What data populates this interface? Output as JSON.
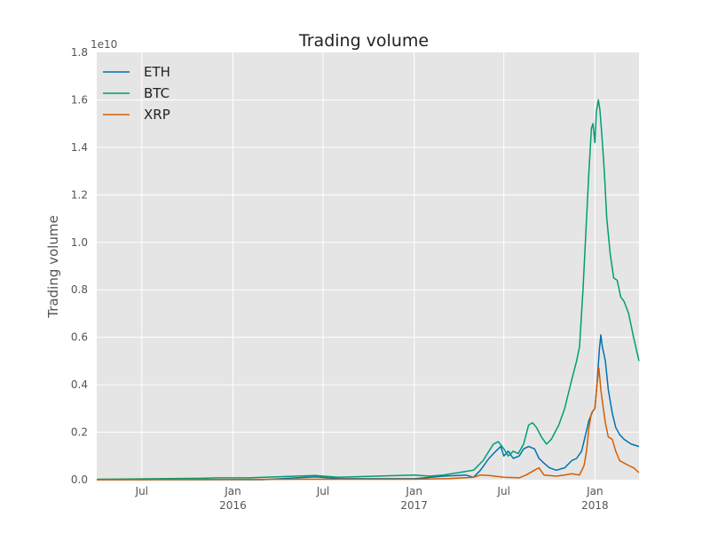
{
  "chart_data": {
    "type": "line",
    "title": "Trading volume",
    "ylabel": "Trading volume",
    "xlabel": "",
    "y_offset_label": "1e10",
    "y_scale": 10000000000,
    "xlim": [
      "2015-04-01",
      "2018-03-31"
    ],
    "ylim": [
      0,
      1.8
    ],
    "grid": true,
    "legend_position": "top-left",
    "background": "#e5e5e5",
    "yticks": [
      {
        "value": 0.0,
        "label": "0.0"
      },
      {
        "value": 0.2,
        "label": "0.2"
      },
      {
        "value": 0.4,
        "label": "0.4"
      },
      {
        "value": 0.6,
        "label": "0.6"
      },
      {
        "value": 0.8,
        "label": "0.8"
      },
      {
        "value": 1.0,
        "label": "1.0"
      },
      {
        "value": 1.2,
        "label": "1.2"
      },
      {
        "value": 1.4,
        "label": "1.4"
      },
      {
        "value": 1.6,
        "label": "1.6"
      },
      {
        "value": 1.8,
        "label": "1.8"
      }
    ],
    "xticks": [
      {
        "date": "2015-07-01",
        "label": "Jul",
        "year": "",
        "major": false
      },
      {
        "date": "2016-01-01",
        "label": "Jan",
        "year": "2016",
        "major": true
      },
      {
        "date": "2016-07-01",
        "label": "Jul",
        "year": "",
        "major": false
      },
      {
        "date": "2017-01-01",
        "label": "Jan",
        "year": "2017",
        "major": true
      },
      {
        "date": "2017-07-01",
        "label": "Jul",
        "year": "",
        "major": false
      },
      {
        "date": "2018-01-01",
        "label": "Jan",
        "year": "2018",
        "major": true
      }
    ],
    "series": [
      {
        "name": "ETH",
        "color": "#0072b2",
        "points": [
          [
            "2015-04-01",
            0.0
          ],
          [
            "2016-03-01",
            0.0
          ],
          [
            "2016-06-15",
            0.012
          ],
          [
            "2016-08-01",
            0.005
          ],
          [
            "2017-01-01",
            0.004
          ],
          [
            "2017-03-01",
            0.015
          ],
          [
            "2017-04-15",
            0.02
          ],
          [
            "2017-05-01",
            0.01
          ],
          [
            "2017-05-15",
            0.04
          ],
          [
            "2017-06-01",
            0.09
          ],
          [
            "2017-06-15",
            0.12
          ],
          [
            "2017-06-25",
            0.14
          ],
          [
            "2017-07-01",
            0.1
          ],
          [
            "2017-07-10",
            0.12
          ],
          [
            "2017-07-20",
            0.09
          ],
          [
            "2017-08-01",
            0.1
          ],
          [
            "2017-08-10",
            0.13
          ],
          [
            "2017-08-20",
            0.14
          ],
          [
            "2017-09-01",
            0.13
          ],
          [
            "2017-09-10",
            0.09
          ],
          [
            "2017-09-20",
            0.07
          ],
          [
            "2017-10-01",
            0.05
          ],
          [
            "2017-10-15",
            0.04
          ],
          [
            "2017-11-01",
            0.05
          ],
          [
            "2017-11-15",
            0.08
          ],
          [
            "2017-11-25",
            0.09
          ],
          [
            "2017-12-05",
            0.12
          ],
          [
            "2017-12-12",
            0.18
          ],
          [
            "2017-12-20",
            0.25
          ],
          [
            "2017-12-28",
            0.29
          ],
          [
            "2018-01-01",
            0.3
          ],
          [
            "2018-01-05",
            0.4
          ],
          [
            "2018-01-10",
            0.55
          ],
          [
            "2018-01-13",
            0.61
          ],
          [
            "2018-01-16",
            0.56
          ],
          [
            "2018-01-22",
            0.5
          ],
          [
            "2018-01-28",
            0.38
          ],
          [
            "2018-02-05",
            0.28
          ],
          [
            "2018-02-12",
            0.22
          ],
          [
            "2018-02-20",
            0.19
          ],
          [
            "2018-03-01",
            0.17
          ],
          [
            "2018-03-15",
            0.15
          ],
          [
            "2018-03-31",
            0.14
          ]
        ]
      },
      {
        "name": "BTC",
        "color": "#009e73",
        "points": [
          [
            "2015-04-01",
            0.002
          ],
          [
            "2015-11-01",
            0.006
          ],
          [
            "2015-12-01",
            0.008
          ],
          [
            "2016-02-01",
            0.008
          ],
          [
            "2016-06-15",
            0.018
          ],
          [
            "2016-08-01",
            0.01
          ],
          [
            "2017-01-01",
            0.02
          ],
          [
            "2017-02-01",
            0.015
          ],
          [
            "2017-03-01",
            0.02
          ],
          [
            "2017-04-01",
            0.03
          ],
          [
            "2017-05-01",
            0.04
          ],
          [
            "2017-05-20",
            0.08
          ],
          [
            "2017-06-01",
            0.12
          ],
          [
            "2017-06-10",
            0.15
          ],
          [
            "2017-06-20",
            0.16
          ],
          [
            "2017-07-01",
            0.13
          ],
          [
            "2017-07-10",
            0.1
          ],
          [
            "2017-07-20",
            0.12
          ],
          [
            "2017-07-30",
            0.11
          ],
          [
            "2017-08-10",
            0.15
          ],
          [
            "2017-08-20",
            0.23
          ],
          [
            "2017-08-28",
            0.24
          ],
          [
            "2017-09-05",
            0.22
          ],
          [
            "2017-09-15",
            0.18
          ],
          [
            "2017-09-25",
            0.15
          ],
          [
            "2017-10-05",
            0.17
          ],
          [
            "2017-10-20",
            0.23
          ],
          [
            "2017-11-01",
            0.3
          ],
          [
            "2017-11-15",
            0.42
          ],
          [
            "2017-11-25",
            0.5
          ],
          [
            "2017-12-01",
            0.56
          ],
          [
            "2017-12-08",
            0.8
          ],
          [
            "2017-12-15",
            1.1
          ],
          [
            "2017-12-20",
            1.3
          ],
          [
            "2017-12-25",
            1.48
          ],
          [
            "2017-12-28",
            1.5
          ],
          [
            "2018-01-01",
            1.42
          ],
          [
            "2018-01-04",
            1.55
          ],
          [
            "2018-01-08",
            1.6
          ],
          [
            "2018-01-11",
            1.56
          ],
          [
            "2018-01-15",
            1.45
          ],
          [
            "2018-01-20",
            1.3
          ],
          [
            "2018-01-25",
            1.1
          ],
          [
            "2018-02-01",
            0.95
          ],
          [
            "2018-02-08",
            0.85
          ],
          [
            "2018-02-15",
            0.84
          ],
          [
            "2018-02-22",
            0.77
          ],
          [
            "2018-03-01",
            0.75
          ],
          [
            "2018-03-10",
            0.7
          ],
          [
            "2018-03-20",
            0.6
          ],
          [
            "2018-03-31",
            0.5
          ]
        ]
      },
      {
        "name": "XRP",
        "color": "#d55e00",
        "points": [
          [
            "2015-04-01",
            0.0
          ],
          [
            "2016-06-01",
            0.002
          ],
          [
            "2017-01-01",
            0.002
          ],
          [
            "2017-03-15",
            0.005
          ],
          [
            "2017-05-01",
            0.01
          ],
          [
            "2017-05-15",
            0.02
          ],
          [
            "2017-06-01",
            0.018
          ],
          [
            "2017-07-01",
            0.01
          ],
          [
            "2017-08-01",
            0.008
          ],
          [
            "2017-08-15",
            0.02
          ],
          [
            "2017-09-01",
            0.04
          ],
          [
            "2017-09-10",
            0.05
          ],
          [
            "2017-09-20",
            0.02
          ],
          [
            "2017-10-15",
            0.015
          ],
          [
            "2017-11-01",
            0.02
          ],
          [
            "2017-11-15",
            0.025
          ],
          [
            "2017-12-01",
            0.02
          ],
          [
            "2017-12-10",
            0.06
          ],
          [
            "2017-12-15",
            0.12
          ],
          [
            "2017-12-20",
            0.22
          ],
          [
            "2017-12-25",
            0.28
          ],
          [
            "2018-01-01",
            0.3
          ],
          [
            "2018-01-05",
            0.4
          ],
          [
            "2018-01-09",
            0.47
          ],
          [
            "2018-01-13",
            0.38
          ],
          [
            "2018-01-18",
            0.3
          ],
          [
            "2018-01-22",
            0.24
          ],
          [
            "2018-01-28",
            0.18
          ],
          [
            "2018-02-05",
            0.17
          ],
          [
            "2018-02-12",
            0.12
          ],
          [
            "2018-02-20",
            0.08
          ],
          [
            "2018-03-01",
            0.07
          ],
          [
            "2018-03-10",
            0.06
          ],
          [
            "2018-03-20",
            0.05
          ],
          [
            "2018-03-31",
            0.03
          ]
        ]
      }
    ]
  }
}
